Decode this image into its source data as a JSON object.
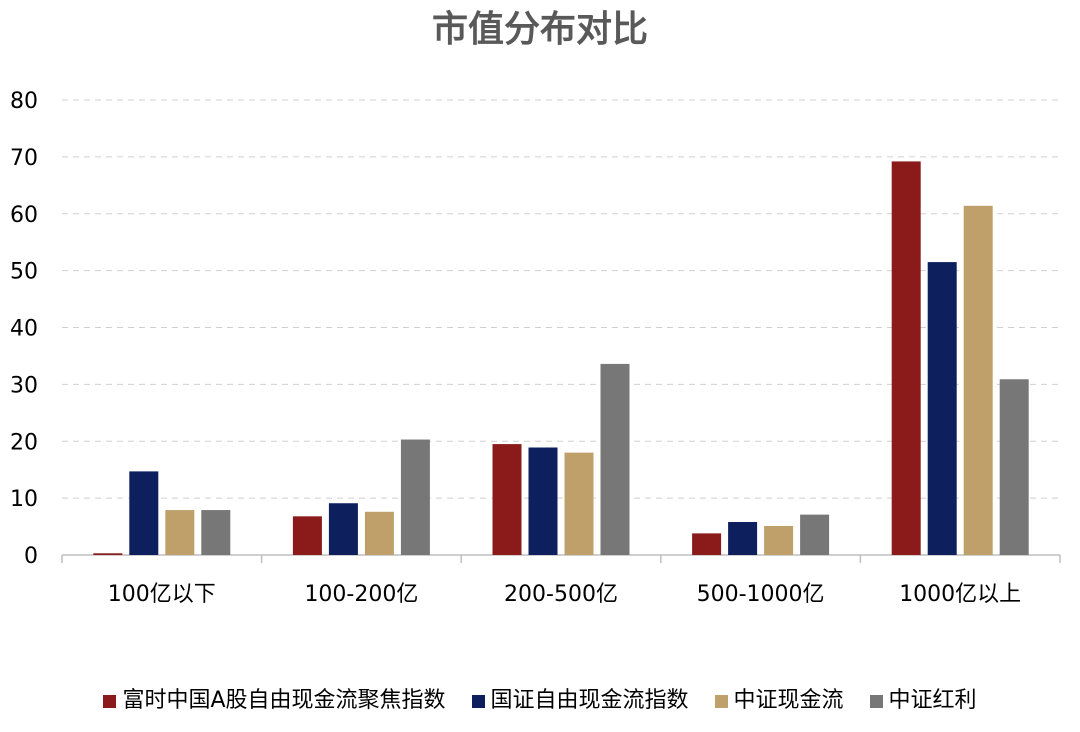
{
  "chart_data": {
    "type": "bar",
    "title": "市值分布对比",
    "xlabel": "",
    "ylabel": "",
    "categories": [
      "100亿以下",
      "100-200亿",
      "200-500亿",
      "500-1000亿",
      "1000亿以上"
    ],
    "series": [
      {
        "name": "富时中国A股自由现金流聚焦指数",
        "color": "#8B1A1A",
        "values": [
          0.3,
          6.8,
          19.5,
          3.8,
          69.2
        ]
      },
      {
        "name": "国证自由现金流指数",
        "color": "#0D1F5C",
        "values": [
          14.7,
          9.1,
          18.9,
          5.8,
          51.5
        ]
      },
      {
        "name": "中证现金流",
        "color": "#C0A06A",
        "values": [
          7.9,
          7.6,
          18.0,
          5.1,
          61.4
        ]
      },
      {
        "name": "中证红利",
        "color": "#777777",
        "values": [
          7.9,
          20.3,
          33.6,
          7.1,
          30.9
        ]
      }
    ],
    "ylim": [
      0,
      80
    ],
    "yticks": [
      0,
      10,
      20,
      30,
      40,
      50,
      60,
      70,
      80
    ],
    "grid": "horizontal-dashed",
    "legend_position": "bottom"
  }
}
